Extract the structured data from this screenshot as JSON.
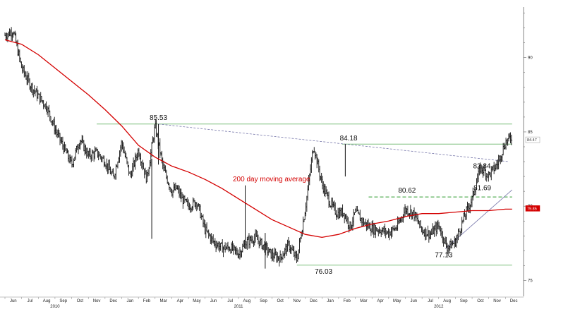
{
  "chart_data": {
    "type": "line",
    "title": "",
    "xlabel": "",
    "ylabel": "",
    "ylim": [
      74.5,
      93.5
    ],
    "y_ticks": [
      75,
      80,
      85,
      90
    ],
    "grid": false,
    "x_months": [
      "Jun",
      "Jul",
      "Aug",
      "Sep",
      "Oct",
      "Nov",
      "Dec",
      "Jan",
      "Feb",
      "Mar",
      "Apr",
      "May",
      "Jun",
      "Jul",
      "Aug",
      "Sep",
      "Oct",
      "Nov",
      "Dec",
      "Jan",
      "Feb",
      "Mar",
      "Apr",
      "May",
      "Jun",
      "Jul",
      "Aug",
      "Sep",
      "Oct",
      "Nov",
      "Dec"
    ],
    "x_years": [
      {
        "label": "2010",
        "month_index": 3
      },
      {
        "label": "2011",
        "month_index": 14
      },
      {
        "label": "2012",
        "month_index": 26
      }
    ],
    "series": [
      {
        "name": "",
        "style": "ohlc",
        "color": "#111111",
        "x": [
          0,
          0.5,
          1,
          1.5,
          2,
          2.5,
          3,
          3.5,
          4,
          4.5,
          5,
          5.5,
          6,
          6.5,
          7,
          7.5,
          8,
          8.5,
          9,
          9.5,
          10,
          10.3,
          10.6,
          11,
          11.5,
          12,
          12.5,
          13,
          13.5,
          14,
          14.5,
          15,
          15.5,
          16,
          16.5,
          17,
          17.5,
          18,
          18.5,
          19,
          19.5,
          19.9,
          20.3,
          20.7,
          21,
          21.5,
          22,
          22.5,
          23,
          23.5,
          24,
          24.5,
          25,
          25.5,
          26,
          26.5,
          27,
          27.5,
          28,
          28.5,
          29,
          29.5,
          30,
          30.4
        ],
        "values": [
          91.5,
          91.8,
          89.3,
          88.2,
          87.4,
          86.7,
          85.2,
          84.0,
          82.8,
          84.5,
          83.4,
          83.6,
          83.0,
          81.9,
          84.3,
          82.0,
          83.8,
          81.8,
          85.4,
          82.5,
          81.0,
          81.2,
          80.5,
          80.0,
          80.3,
          78.4,
          77.6,
          77.2,
          77.2,
          76.8,
          77.6,
          77.9,
          77.3,
          76.7,
          76.5,
          77.4,
          76.4,
          79.8,
          84.1,
          81.5,
          80.2,
          79.5,
          79.6,
          78.6,
          79.6,
          78.9,
          78.5,
          78.4,
          78.2,
          78.6,
          79.8,
          79.5,
          78.4,
          78.1,
          78.7,
          77.2,
          77.6,
          79.2,
          80.5,
          82.6,
          82.1,
          82.8,
          84.3,
          84.7
        ]
      },
      {
        "name": "200 day moving average",
        "style": "line",
        "color": "#d40000",
        "x": [
          0,
          1,
          2,
          3,
          4,
          5,
          6,
          7,
          8,
          9,
          10,
          11,
          12,
          13,
          14,
          15,
          16,
          17,
          18,
          19,
          20,
          21,
          22,
          23,
          24,
          25,
          26,
          27,
          28,
          29,
          30,
          30.4
        ],
        "values": [
          91.2,
          90.9,
          90.2,
          89.3,
          88.4,
          87.5,
          86.5,
          85.4,
          84.1,
          83.3,
          82.7,
          82.3,
          81.8,
          81.2,
          80.5,
          79.8,
          79.1,
          78.6,
          78.1,
          77.9,
          78.1,
          78.5,
          78.8,
          79.0,
          79.3,
          79.5,
          79.5,
          79.6,
          79.7,
          79.7,
          79.8,
          79.8
        ]
      }
    ],
    "levels": [
      {
        "value": 85.53,
        "style": "solid",
        "color": "#7fbf7f",
        "x_start": 5.5,
        "x_end": 30.4
      },
      {
        "value": 84.18,
        "style": "solid",
        "color": "#7fbf7f",
        "x_start": 20.2,
        "x_end": 30.4
      },
      {
        "value": 80.62,
        "style": "dashed",
        "color": "#2e9a2e",
        "x_start": 21.8,
        "x_end": 30.4
      },
      {
        "value": 76.03,
        "style": "solid",
        "color": "#7fbf7f",
        "x_start": 17.5,
        "x_end": 30.4
      }
    ],
    "trendlines": [
      {
        "style": "dashed",
        "color": "#7777aa",
        "from": {
          "x": 9.2,
          "y": 85.53
        },
        "to": {
          "x": 30.2,
          "y": 83.0
        }
      },
      {
        "style": "solid",
        "color": "#7777aa",
        "from": {
          "x": 26.4,
          "y": 77.13
        },
        "to": {
          "x": 30.4,
          "y": 81.1
        }
      }
    ],
    "annotations": [
      {
        "text": "85.53",
        "x": 9.2,
        "y": 85.53
      },
      {
        "text": "84.18",
        "x": 20.6,
        "y": 84.18
      },
      {
        "text": "80.62",
        "x": 24.1,
        "y": 80.62
      },
      {
        "text": "76.03",
        "x": 19.1,
        "y": 76.03
      },
      {
        "text": "77.13",
        "x": 26.3,
        "y": 77.13
      },
      {
        "text": "82.84",
        "x": 28.8,
        "y": 82.84
      },
      {
        "text": "81.69",
        "x": 28.7,
        "y": 81.69
      }
    ],
    "ma_label": "200 day moving average",
    "value_tags": [
      {
        "text": "84.47",
        "value": 84.47,
        "color": "#333333",
        "bg": "#ffffff"
      },
      {
        "text": "79.85",
        "value": 79.85,
        "color": "#ffffff",
        "bg": "#d40000"
      }
    ]
  }
}
